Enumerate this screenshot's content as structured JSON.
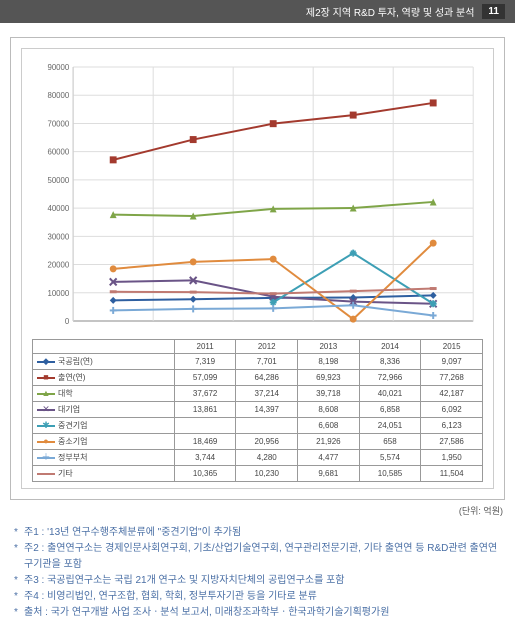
{
  "header": {
    "title": "제2장 지역 R&D 투자, 역량 및 성과 분석",
    "page": "11"
  },
  "chart": {
    "type": "line",
    "ylim": [
      0,
      90000
    ],
    "ytick_step": 10000,
    "years": [
      "2011",
      "2012",
      "2013",
      "2014",
      "2015"
    ],
    "grid_color": "#dddddd",
    "axis_color": "#888888",
    "background": "#ffffff",
    "series": [
      {
        "name": "국공립(연)",
        "color": "#2e5fa0",
        "marker": "diamond",
        "values": [
          7319,
          7701,
          8198,
          8336,
          9097
        ]
      },
      {
        "name": "출연(연)",
        "color": "#a33a2e",
        "marker": "square",
        "values": [
          57099,
          64286,
          69923,
          72966,
          77268
        ]
      },
      {
        "name": "대학",
        "color": "#7fa548",
        "marker": "triangle",
        "values": [
          37672,
          37214,
          39718,
          40021,
          42187
        ]
      },
      {
        "name": "대기업",
        "color": "#6a5487",
        "marker": "x",
        "values": [
          13861,
          14397,
          8608,
          6858,
          6092
        ]
      },
      {
        "name": "중견기업",
        "color": "#3d9fb5",
        "marker": "star",
        "values": [
          null,
          null,
          6608,
          24051,
          6123
        ]
      },
      {
        "name": "중소기업",
        "color": "#e08b3e",
        "marker": "circle",
        "values": [
          18469,
          20956,
          21926,
          658,
          27586
        ]
      },
      {
        "name": "정부부처",
        "color": "#7aa9d6",
        "marker": "plus",
        "values": [
          3744,
          4280,
          4477,
          5574,
          1950
        ]
      },
      {
        "name": "기타",
        "color": "#c07a72",
        "marker": "dash",
        "values": [
          10365,
          10230,
          9681,
          10585,
          11504
        ]
      }
    ]
  },
  "unit": "(단위: 억원)",
  "notes": [
    "주1 : '13년 연구수행주체분류에 \"중견기업\"이 추가됨",
    "주2 : 출연연구소는 경제인문사회연구회, 기초/산업기술연구회, 연구관리전문기관, 기타 출연연 등 R&D관련 출연연구기관을 포함",
    "주3 : 국공립연구소는 국립 21개 연구소 및 지방자치단체의 공립연구소를 포함",
    "주4 : 비영리법인, 연구조합, 협회, 학회, 정부투자기관 등을 기타로 분류",
    "출처 : 국가 연구개발 사업 조사ㆍ분석 보고서, 미래창조과학부ㆍ한국과학기술기획평가원"
  ]
}
